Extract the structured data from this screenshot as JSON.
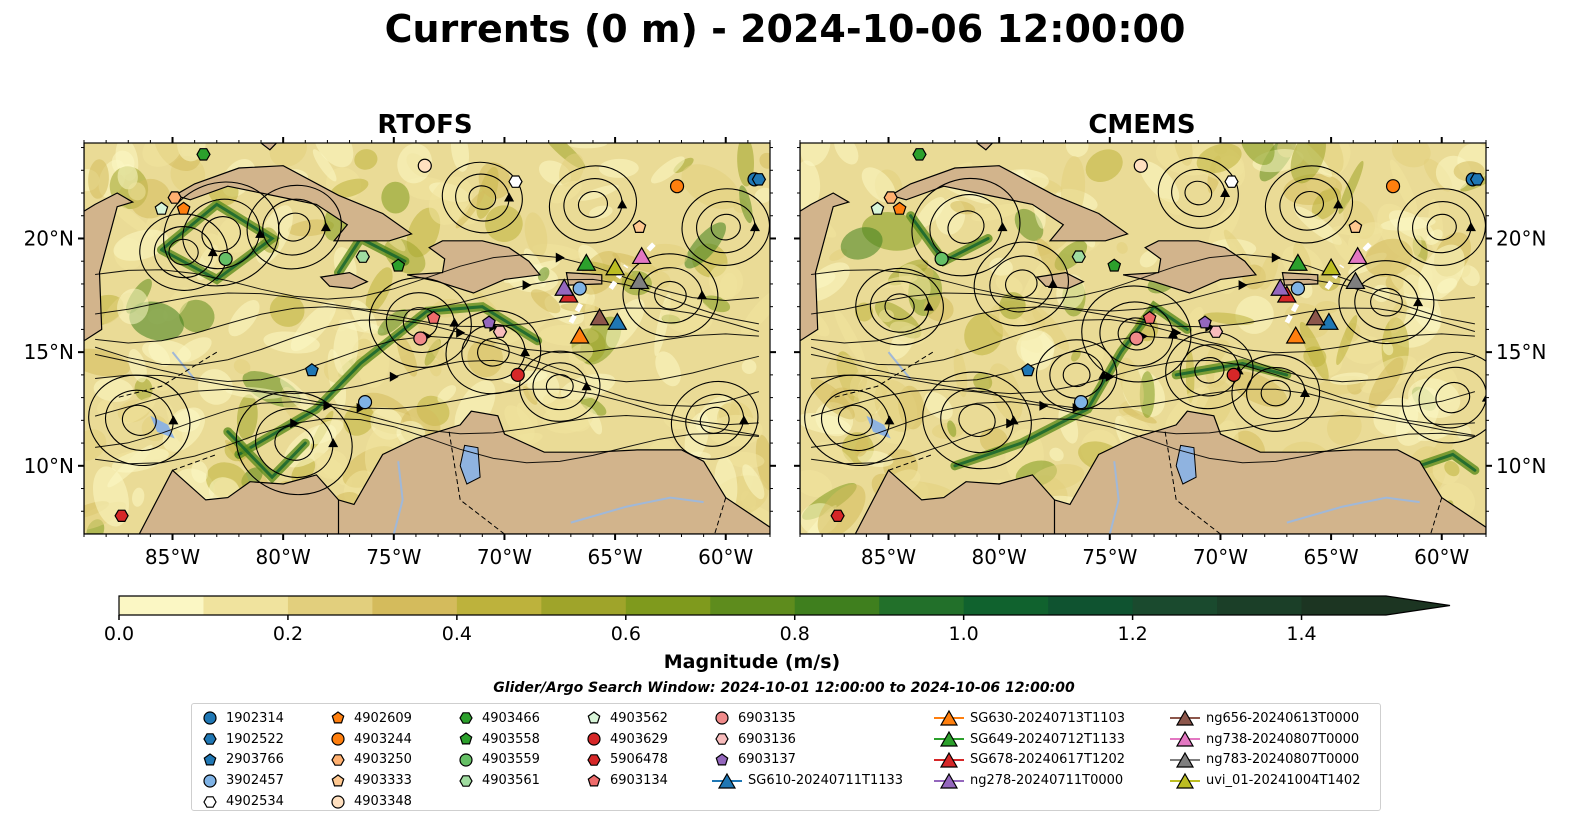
{
  "figure": {
    "title": "Currents (0 m) - 2024-10-06 12:00:00",
    "search_window": "Glider/Argo Search Window: 2024-10-01 12:00:00 to 2024-10-06 12:00:00"
  },
  "chart_data": [
    {
      "type": "heatmap",
      "title": "RTOFS",
      "variable": "surface current magnitude with streamlines",
      "xlim": [
        -89,
        -58
      ],
      "ylim": [
        7,
        24.2
      ],
      "xticks": [
        "85°W",
        "80°W",
        "75°W",
        "70°W",
        "65°W",
        "60°W"
      ],
      "yticks": [
        "10°N",
        "15°N",
        "20°N"
      ],
      "grid": false
    },
    {
      "type": "heatmap",
      "title": "CMEMS",
      "variable": "surface current magnitude with streamlines",
      "xlim": [
        -89,
        -58
      ],
      "ylim": [
        7,
        24.2
      ],
      "xticks": [
        "85°W",
        "80°W",
        "75°W",
        "70°W",
        "65°W",
        "60°W"
      ],
      "yticks": [
        "10°N",
        "15°N",
        "20°N"
      ],
      "grid": false
    }
  ],
  "colorbar": {
    "label": "Magnitude (m/s)",
    "min": 0.0,
    "max": 1.5,
    "extend": "max",
    "ticks": [
      "0.0",
      "0.2",
      "0.4",
      "0.6",
      "0.8",
      "1.0",
      "1.2",
      "1.4"
    ],
    "colors": [
      "#fbf7c4",
      "#f0e39e",
      "#e2cf7d",
      "#d4bb5c",
      "#bdb23c",
      "#9fa42a",
      "#7f9a1d",
      "#5e8c1d",
      "#3f7f1e",
      "#22702a",
      "#10622e",
      "#0f5330",
      "#1a4a2e",
      "#1b3f28",
      "#1c3522"
    ]
  },
  "colors": {
    "land": "#d2b48c",
    "lake": "#8fb3e0",
    "river": "#a0b8d8"
  },
  "legend": {
    "columns": [
      [
        {
          "label": "1902314",
          "marker": "circle",
          "color": "#1f77b4"
        },
        {
          "label": "1902522",
          "marker": "hexagon",
          "color": "#1f77b4"
        },
        {
          "label": "2903766",
          "marker": "pentagon",
          "color": "#1f77b4"
        },
        {
          "label": "3902457",
          "marker": "circle",
          "color": "#7fb3e6"
        },
        {
          "label": "4902534",
          "marker": "hexagon",
          "color": "#ffffff"
        }
      ],
      [
        {
          "label": "4902609",
          "marker": "pentagon",
          "color": "#ff7f0e"
        },
        {
          "label": "4903244",
          "marker": "circle",
          "color": "#ff7f0e"
        },
        {
          "label": "4903250",
          "marker": "hexagon",
          "color": "#ffb070"
        },
        {
          "label": "4903333",
          "marker": "pentagon",
          "color": "#ffc890"
        },
        {
          "label": "4903348",
          "marker": "circle",
          "color": "#ffe0c0"
        }
      ],
      [
        {
          "label": "4903466",
          "marker": "hexagon",
          "color": "#2ca02c"
        },
        {
          "label": "4903558",
          "marker": "pentagon",
          "color": "#2ca02c"
        },
        {
          "label": "4903559",
          "marker": "circle",
          "color": "#66c066"
        },
        {
          "label": "4903561",
          "marker": "hexagon",
          "color": "#a0dca0"
        }
      ],
      [
        {
          "label": "4903562",
          "marker": "pentagon",
          "color": "#d8f5d8"
        },
        {
          "label": "4903629",
          "marker": "circle",
          "color": "#d62728"
        },
        {
          "label": "5906478",
          "marker": "hexagon",
          "color": "#d62728"
        },
        {
          "label": "6903134",
          "marker": "pentagon",
          "color": "#ee6b6b"
        }
      ],
      [
        {
          "label": "6903135",
          "marker": "circle",
          "color": "#f08a8a"
        },
        {
          "label": "6903136",
          "marker": "hexagon",
          "color": "#f8bcbc"
        },
        {
          "label": "6903137",
          "marker": "pentagon",
          "color": "#9467bd"
        },
        {
          "label": "SG610-20240711T1133",
          "marker": "triangle",
          "color": "#1f77b4"
        }
      ],
      [
        {
          "label": "SG630-20240713T1103",
          "marker": "triangle",
          "color": "#ff7f0e"
        },
        {
          "label": "SG649-20240712T1133",
          "marker": "triangle",
          "color": "#2ca02c"
        },
        {
          "label": "SG678-20240617T1202",
          "marker": "triangle",
          "color": "#d62728"
        },
        {
          "label": "ng278-20240711T0000",
          "marker": "triangle",
          "color": "#9467bd"
        }
      ],
      [
        {
          "label": "ng656-20240613T0000",
          "marker": "triangle",
          "color": "#8c564b"
        },
        {
          "label": "ng738-20240807T0000",
          "marker": "triangle",
          "color": "#e377c2"
        },
        {
          "label": "ng783-20240807T0000",
          "marker": "triangle",
          "color": "#7f7f7f"
        },
        {
          "label": "uvi_01-20241004T1402",
          "marker": "triangle",
          "color": "#bcbd22"
        }
      ]
    ]
  },
  "stations": [
    {
      "label": "1902314",
      "lon": -58.7,
      "lat": 22.6,
      "lon_cmems": -58.6,
      "lat_cmems": 22.6
    },
    {
      "label": "1902522",
      "lon": -58.5,
      "lat": 22.6,
      "lon_cmems": -58.4,
      "lat_cmems": 22.6
    },
    {
      "label": "2903766",
      "lon": -78.7,
      "lat": 14.2,
      "lon_cmems": -78.7,
      "lat_cmems": 14.2
    },
    {
      "label": "3902457",
      "lon": -76.3,
      "lat": 12.8,
      "lon_cmems": -76.3,
      "lat_cmems": 12.8
    },
    {
      "label": "3902457",
      "lon": -66.6,
      "lat": 17.8,
      "lon_cmems": -66.5,
      "lat_cmems": 17.8
    },
    {
      "label": "4902534",
      "lon": -69.5,
      "lat": 22.5,
      "lon_cmems": -69.5,
      "lat_cmems": 22.5
    },
    {
      "label": "4902609",
      "lon": -84.5,
      "lat": 21.3,
      "lon_cmems": -84.5,
      "lat_cmems": 21.3
    },
    {
      "label": "4903244",
      "lon": -62.2,
      "lat": 22.3,
      "lon_cmems": -62.2,
      "lat_cmems": 22.3
    },
    {
      "label": "4903250",
      "lon": -84.9,
      "lat": 21.8,
      "lon_cmems": -84.9,
      "lat_cmems": 21.8
    },
    {
      "label": "4903333",
      "lon": -63.9,
      "lat": 20.5,
      "lon_cmems": -63.9,
      "lat_cmems": 20.5
    },
    {
      "label": "4903348",
      "lon": -73.6,
      "lat": 23.2,
      "lon_cmems": -73.6,
      "lat_cmems": 23.2
    },
    {
      "label": "4903466",
      "lon": -83.6,
      "lat": 23.7,
      "lon_cmems": -83.6,
      "lat_cmems": 23.7
    },
    {
      "label": "4903558",
      "lon": -74.8,
      "lat": 18.8,
      "lon_cmems": -74.8,
      "lat_cmems": 18.8
    },
    {
      "label": "4903559",
      "lon": -82.6,
      "lat": 19.1,
      "lon_cmems": -82.6,
      "lat_cmems": 19.1
    },
    {
      "label": "4903561",
      "lon": -76.4,
      "lat": 19.2,
      "lon_cmems": -76.4,
      "lat_cmems": 19.2
    },
    {
      "label": "4903562",
      "lon": -85.5,
      "lat": 21.3,
      "lon_cmems": -85.5,
      "lat_cmems": 21.3
    },
    {
      "label": "4903629",
      "lon": -69.4,
      "lat": 14.0,
      "lon_cmems": -69.4,
      "lat_cmems": 14.0
    },
    {
      "label": "5906478",
      "lon": -87.3,
      "lat": 7.8,
      "lon_cmems": -87.3,
      "lat_cmems": 7.8
    },
    {
      "label": "6903134",
      "lon": -73.2,
      "lat": 16.5,
      "lon_cmems": -73.2,
      "lat_cmems": 16.5
    },
    {
      "label": "6903135",
      "lon": -73.8,
      "lat": 15.6,
      "lon_cmems": -73.8,
      "lat_cmems": 15.6
    },
    {
      "label": "6903136",
      "lon": -70.2,
      "lat": 15.9,
      "lon_cmems": -70.2,
      "lat_cmems": 15.9
    },
    {
      "label": "6903137",
      "lon": -70.7,
      "lat": 16.3,
      "lon_cmems": -70.7,
      "lat_cmems": 16.3
    },
    {
      "label": "SG610-20240711T1133",
      "lon": -64.9,
      "lat": 16.3,
      "lon_cmems": -65.1,
      "lat_cmems": 16.3
    },
    {
      "label": "SG630-20240713T1103",
      "lon": -66.6,
      "lat": 15.7,
      "lon_cmems": -66.6,
      "lat_cmems": 15.7
    },
    {
      "label": "SG649-20240712T1133",
      "lon": -66.3,
      "lat": 18.9,
      "lon_cmems": -66.5,
      "lat_cmems": 18.9
    },
    {
      "label": "SG678-20240617T1202",
      "lon": -67.1,
      "lat": 17.5,
      "lon_cmems": -67.0,
      "lat_cmems": 17.5
    },
    {
      "label": "ng278-20240711T0000",
      "lon": -67.3,
      "lat": 17.8,
      "lon_cmems": -67.3,
      "lat_cmems": 17.8
    },
    {
      "label": "ng656-20240613T0000",
      "lon": -65.7,
      "lat": 16.5,
      "lon_cmems": -65.7,
      "lat_cmems": 16.5
    },
    {
      "label": "ng738-20240807T0000",
      "lon": -63.8,
      "lat": 19.2,
      "lon_cmems": -63.8,
      "lat_cmems": 19.2
    },
    {
      "label": "ng783-20240807T0000",
      "lon": -63.9,
      "lat": 18.1,
      "lon_cmems": -63.9,
      "lat_cmems": 18.1
    },
    {
      "label": "uvi_01-20241004T1402",
      "lon": -65.0,
      "lat": 18.7,
      "lon_cmems": -65.0,
      "lat_cmems": 18.7
    }
  ]
}
